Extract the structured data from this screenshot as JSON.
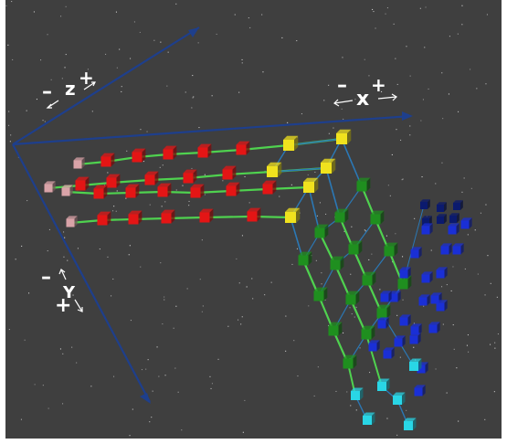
{
  "view": {
    "background": "#3f3f3f",
    "axis_color": "#1e3f8c"
  },
  "axes": {
    "z": {
      "minus": "–",
      "letter": "z",
      "plus": "+"
    },
    "x": {
      "minus": "–",
      "letter": "x",
      "plus": "+"
    },
    "y": {
      "minus": "–",
      "letter": "Y",
      "plus": "+"
    }
  },
  "colors": {
    "pink": "#d9a3a8",
    "red": "#e41515",
    "yellow": "#f0e21e",
    "green": "#1f8f1f",
    "blue": "#1a2fd6",
    "navy": "#0b1a6e",
    "cyan": "#29d6e6",
    "connector_green": "#4fd24f",
    "connector_blue": "#2b78b5"
  },
  "icons": [
    "arrow-icon"
  ]
}
